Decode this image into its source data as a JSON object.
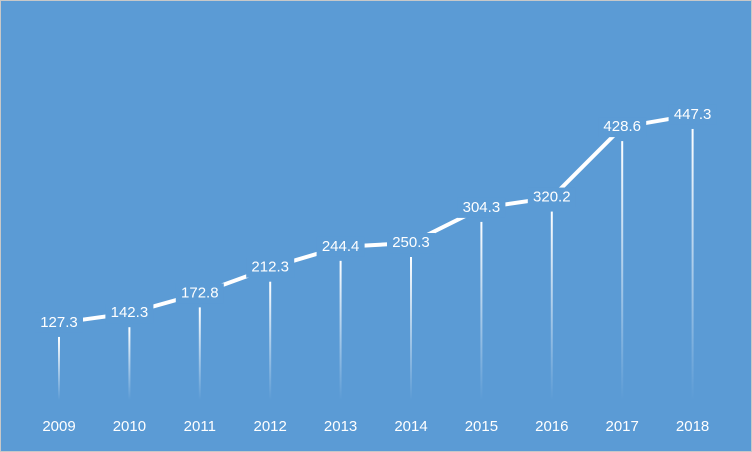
{
  "chart_data": {
    "type": "line",
    "categories": [
      "2009",
      "2010",
      "2011",
      "2012",
      "2013",
      "2014",
      "2015",
      "2016",
      "2017",
      "2018"
    ],
    "values": [
      127.3,
      142.3,
      172.8,
      212.3,
      244.4,
      250.3,
      304.3,
      320.2,
      428.6,
      447.3
    ],
    "color": "#ffffff",
    "background": "#5b9bd5"
  }
}
